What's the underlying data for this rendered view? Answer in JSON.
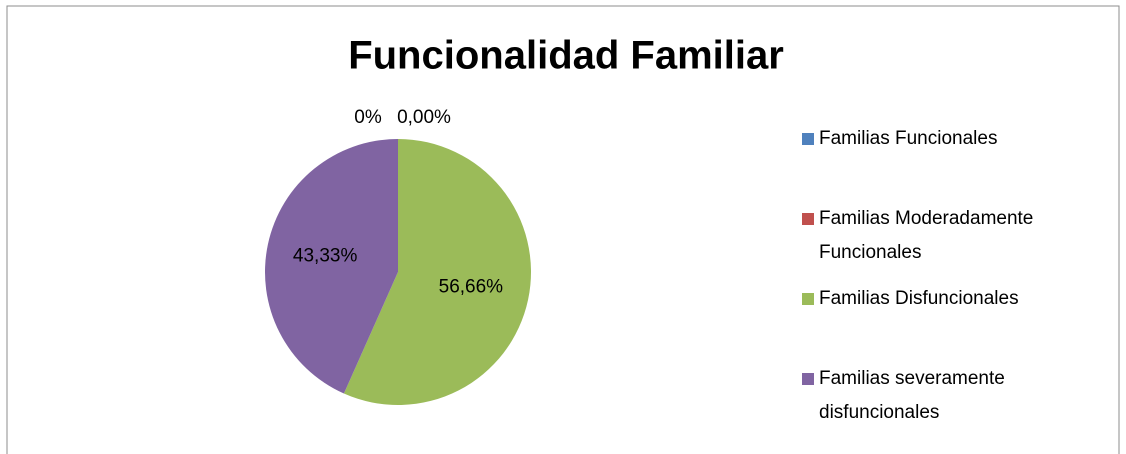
{
  "chart_data": {
    "type": "pie",
    "title": "Funcionalidad Familiar",
    "categories": [
      "Familias Funcionales",
      "Familias Moderadamente Funcionales",
      "Familias Disfuncionales",
      "Familias severamente disfuncionales"
    ],
    "values": [
      0,
      0,
      56.66,
      43.33
    ],
    "value_labels": [
      "0,00%",
      "0%",
      "56,66%",
      "43,33%"
    ],
    "colors": [
      "#4f81bd",
      "#c0504d",
      "#9bbb59",
      "#8064a2"
    ],
    "legend": "right"
  }
}
